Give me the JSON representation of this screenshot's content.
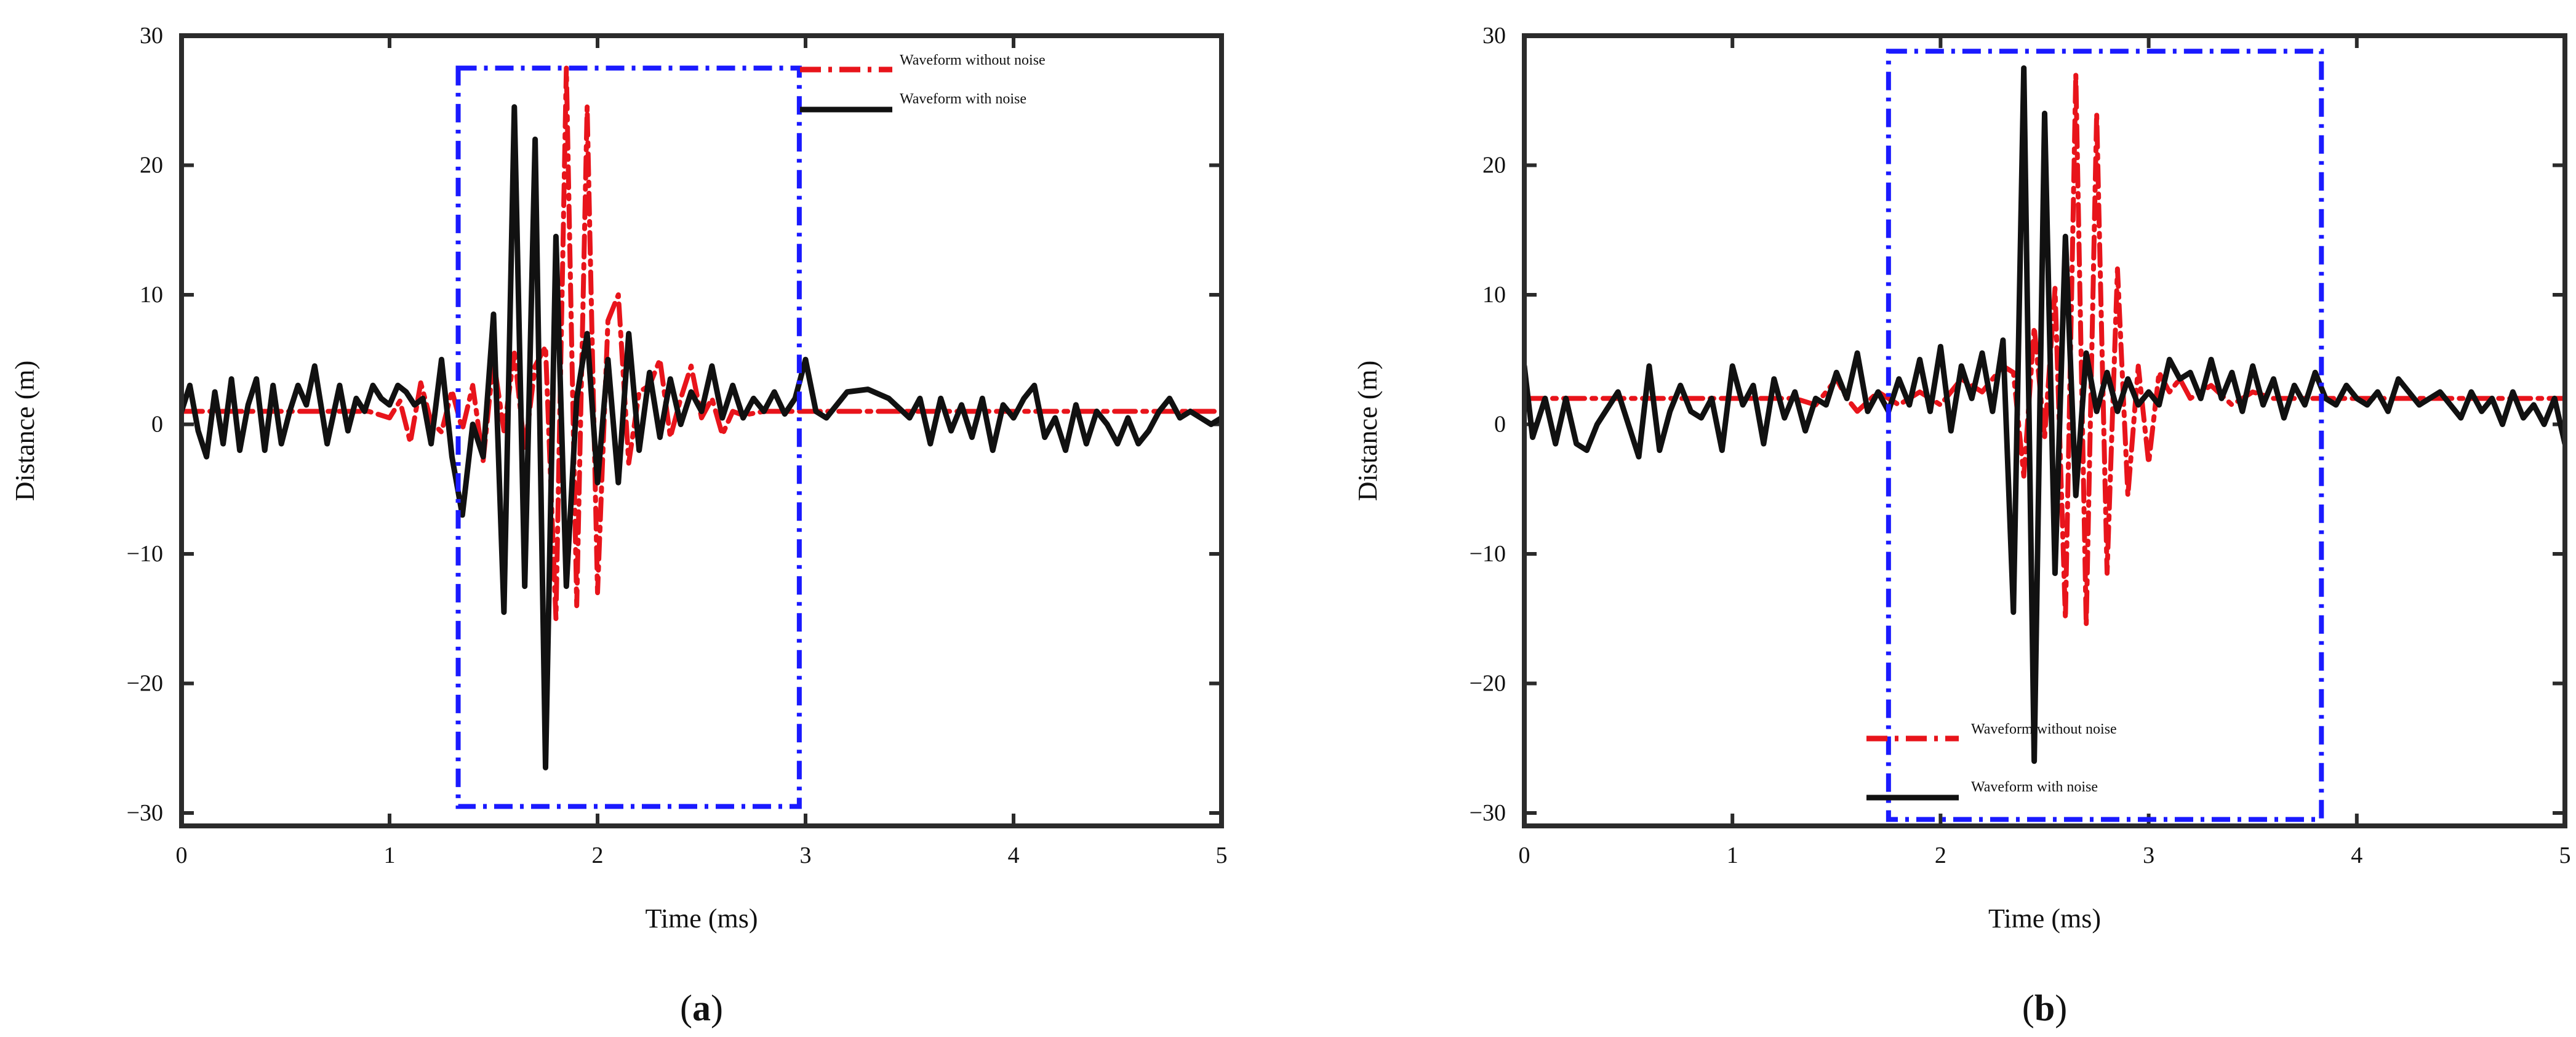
{
  "chart_data": [
    {
      "type": "line",
      "panel_label": "(a)",
      "xlabel": "Time (ms)",
      "ylabel": "Distance (m)",
      "xlim": [
        0,
        5
      ],
      "ylim": [
        -31,
        30
      ],
      "xticks": [
        "0",
        "1",
        "2",
        "3",
        "4",
        "5"
      ],
      "yticks": [
        "−30",
        "−20",
        "−10",
        "0",
        "10",
        "20",
        "30"
      ],
      "grid": false,
      "legend_position": "top-right inside highlighted box",
      "highlight_box": {
        "x": [
          1.33,
          2.97
        ],
        "y": [
          -29.5,
          27.5
        ],
        "color": "#1a1aff",
        "style": "dash-dot"
      },
      "series": [
        {
          "name": "Waveform without noise",
          "color": "#e8141b",
          "style": "dash-dot",
          "x": [
            0,
            0.9,
            1.0,
            1.05,
            1.1,
            1.15,
            1.2,
            1.25,
            1.3,
            1.35,
            1.4,
            1.45,
            1.5,
            1.55,
            1.6,
            1.65,
            1.7,
            1.75,
            1.8,
            1.85,
            1.9,
            1.95,
            2.0,
            2.05,
            2.1,
            2.15,
            2.2,
            2.25,
            2.3,
            2.35,
            2.4,
            2.45,
            2.5,
            2.55,
            2.6,
            2.65,
            2.7,
            2.8,
            3.0,
            5.0
          ],
          "y": [
            1.0,
            1.0,
            0.5,
            1.8,
            -1.4,
            3.2,
            0.2,
            -0.6,
            2.6,
            -0.4,
            3.0,
            -2.8,
            5.0,
            -0.5,
            5.5,
            -2.0,
            4.5,
            6.0,
            -15.0,
            27.5,
            -14.0,
            24.5,
            -13.0,
            8.0,
            10.0,
            -3.0,
            2.5,
            3.0,
            5.0,
            -1.0,
            2.0,
            4.5,
            0.5,
            2.0,
            -0.8,
            1.0,
            0.7,
            1.0,
            1.0,
            1.0
          ]
        },
        {
          "name": "Waveform with noise",
          "color": "#111111",
          "style": "solid",
          "x": [
            0,
            0.04,
            0.08,
            0.12,
            0.16,
            0.2,
            0.24,
            0.28,
            0.32,
            0.36,
            0.4,
            0.44,
            0.48,
            0.52,
            0.56,
            0.6,
            0.64,
            0.7,
            0.76,
            0.8,
            0.84,
            0.88,
            0.92,
            0.96,
            1.0,
            1.04,
            1.08,
            1.12,
            1.16,
            1.2,
            1.25,
            1.3,
            1.35,
            1.4,
            1.45,
            1.5,
            1.55,
            1.6,
            1.65,
            1.7,
            1.75,
            1.8,
            1.85,
            1.9,
            1.95,
            2.0,
            2.05,
            2.1,
            2.15,
            2.2,
            2.25,
            2.3,
            2.35,
            2.4,
            2.45,
            2.5,
            2.55,
            2.6,
            2.65,
            2.7,
            2.75,
            2.8,
            2.85,
            2.9,
            2.95,
            3.0,
            3.05,
            3.1,
            3.2,
            3.3,
            3.4,
            3.5,
            3.55,
            3.6,
            3.65,
            3.7,
            3.75,
            3.8,
            3.85,
            3.9,
            3.95,
            4.0,
            4.05,
            4.1,
            4.15,
            4.2,
            4.25,
            4.3,
            4.35,
            4.4,
            4.45,
            4.5,
            4.55,
            4.6,
            4.65,
            4.7,
            4.75,
            4.8,
            4.85,
            4.9,
            4.95,
            5.0
          ],
          "y": [
            1.0,
            3.0,
            -0.5,
            -2.5,
            2.5,
            -1.5,
            3.5,
            -2.0,
            1.5,
            3.5,
            -2.0,
            3.0,
            -1.5,
            1.0,
            3.0,
            1.5,
            4.5,
            -1.5,
            3.0,
            -0.5,
            2.0,
            1.0,
            3.0,
            2.0,
            1.5,
            3.0,
            2.5,
            1.5,
            2.0,
            -1.5,
            5.0,
            -2.5,
            -7.0,
            0.0,
            -2.5,
            8.5,
            -14.5,
            24.5,
            -12.5,
            22.0,
            -26.5,
            14.5,
            -12.5,
            2.0,
            7.0,
            -4.5,
            5.0,
            -4.5,
            7.0,
            -2.0,
            4.0,
            -1.0,
            3.5,
            0.0,
            2.5,
            1.0,
            4.5,
            0.5,
            3.0,
            0.5,
            2.0,
            1.0,
            2.5,
            0.8,
            2.0,
            5.0,
            1.0,
            0.5,
            2.5,
            2.7,
            2.0,
            0.5,
            2.0,
            -1.5,
            2.0,
            -0.5,
            1.5,
            -1.0,
            2.0,
            -2.0,
            1.5,
            0.5,
            2.0,
            3.0,
            -1.0,
            0.5,
            -2.0,
            1.5,
            -1.5,
            1.0,
            0.0,
            -1.5,
            0.5,
            -1.5,
            -0.5,
            1.0,
            2.0,
            0.5,
            1.0,
            0.5,
            0.0,
            0.5
          ]
        }
      ]
    },
    {
      "type": "line",
      "panel_label": "(b)",
      "xlabel": "Time (ms)",
      "ylabel": "Distance (m)",
      "xlim": [
        0,
        5
      ],
      "ylim": [
        -31,
        30
      ],
      "xticks": [
        "0",
        "1",
        "2",
        "3",
        "4",
        "5"
      ],
      "yticks": [
        "−30",
        "−20",
        "−10",
        "0",
        "10",
        "20",
        "30"
      ],
      "grid": false,
      "legend_position": "bottom-left inside highlighted box",
      "highlight_box": {
        "x": [
          1.75,
          3.83
        ],
        "y": [
          -30.5,
          28.8
        ],
        "color": "#1a1aff",
        "style": "dash-dot"
      },
      "series": [
        {
          "name": "Waveform without noise",
          "color": "#e8141b",
          "style": "dash-dot",
          "x": [
            0,
            1.3,
            1.4,
            1.45,
            1.5,
            1.55,
            1.6,
            1.7,
            1.8,
            1.9,
            2.0,
            2.1,
            2.2,
            2.3,
            2.35,
            2.4,
            2.45,
            2.5,
            2.55,
            2.6,
            2.65,
            2.7,
            2.75,
            2.8,
            2.85,
            2.9,
            2.95,
            3.0,
            3.05,
            3.1,
            3.15,
            3.2,
            3.3,
            3.4,
            3.5,
            3.6,
            3.7,
            3.8,
            5.0
          ],
          "y": [
            2.0,
            2.0,
            1.5,
            2.5,
            3.5,
            2.0,
            1.0,
            2.5,
            1.5,
            2.5,
            1.5,
            3.5,
            2.5,
            4.5,
            4.0,
            -4.0,
            7.5,
            -1.0,
            10.5,
            -15.0,
            27.0,
            -15.5,
            24.0,
            -11.5,
            12.0,
            -5.5,
            4.5,
            -3.0,
            4.0,
            2.5,
            3.5,
            2.0,
            3.0,
            1.5,
            2.5,
            2.0,
            2.0,
            2.0,
            2.0
          ]
        },
        {
          "name": "Waveform with noise",
          "color": "#111111",
          "style": "solid",
          "x": [
            0,
            0.04,
            0.1,
            0.15,
            0.2,
            0.25,
            0.3,
            0.35,
            0.45,
            0.55,
            0.6,
            0.65,
            0.7,
            0.75,
            0.8,
            0.85,
            0.9,
            0.95,
            1.0,
            1.05,
            1.1,
            1.15,
            1.2,
            1.25,
            1.3,
            1.35,
            1.4,
            1.45,
            1.5,
            1.55,
            1.6,
            1.65,
            1.7,
            1.75,
            1.8,
            1.85,
            1.9,
            1.95,
            2.0,
            2.05,
            2.1,
            2.15,
            2.2,
            2.25,
            2.3,
            2.35,
            2.4,
            2.45,
            2.5,
            2.55,
            2.6,
            2.65,
            2.7,
            2.75,
            2.8,
            2.85,
            2.9,
            2.95,
            3.0,
            3.05,
            3.1,
            3.15,
            3.2,
            3.25,
            3.3,
            3.35,
            3.4,
            3.45,
            3.5,
            3.55,
            3.6,
            3.65,
            3.7,
            3.75,
            3.8,
            3.85,
            3.9,
            3.95,
            4.0,
            4.05,
            4.1,
            4.15,
            4.2,
            4.3,
            4.4,
            4.5,
            4.55,
            4.6,
            4.65,
            4.7,
            4.75,
            4.8,
            4.85,
            4.9,
            4.95,
            5.0
          ],
          "y": [
            4.5,
            -1.0,
            2.0,
            -1.5,
            2.0,
            -1.5,
            -2.0,
            0.0,
            2.5,
            -2.5,
            4.5,
            -2.0,
            1.0,
            3.0,
            1.0,
            0.5,
            2.0,
            -2.0,
            4.5,
            1.5,
            3.0,
            -1.5,
            3.5,
            0.5,
            2.5,
            -0.5,
            2.0,
            1.5,
            4.0,
            2.0,
            5.5,
            1.0,
            2.5,
            1.0,
            3.5,
            1.5,
            5.0,
            1.0,
            6.0,
            -0.5,
            4.5,
            2.0,
            5.5,
            1.0,
            6.5,
            -14.5,
            27.5,
            -26.0,
            24.0,
            -11.5,
            14.5,
            -5.5,
            5.5,
            1.0,
            4.0,
            1.0,
            3.5,
            1.5,
            2.5,
            1.5,
            5.0,
            3.5,
            4.0,
            2.0,
            5.0,
            2.0,
            4.0,
            1.0,
            4.5,
            1.5,
            3.5,
            0.5,
            3.0,
            1.5,
            4.0,
            2.0,
            1.5,
            3.0,
            2.0,
            1.5,
            2.5,
            1.0,
            3.5,
            1.5,
            2.5,
            0.5,
            2.5,
            1.0,
            2.0,
            0.0,
            2.5,
            0.5,
            1.5,
            0.0,
            2.0,
            -1.5
          ]
        }
      ]
    }
  ]
}
